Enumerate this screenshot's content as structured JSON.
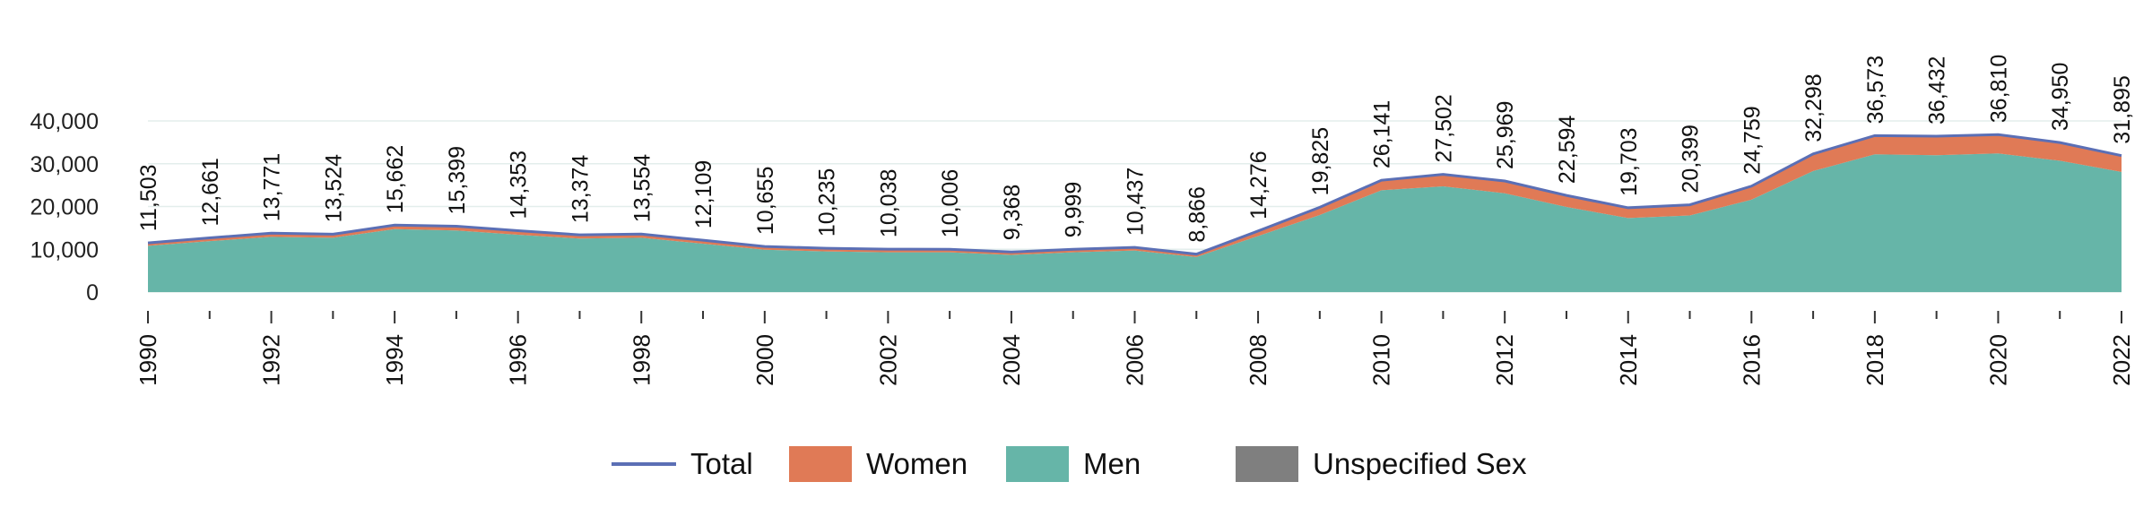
{
  "chart_data": {
    "type": "area",
    "stacked": true,
    "title": "",
    "xlabel": "",
    "ylabel": "",
    "x": [
      1990,
      1991,
      1992,
      1993,
      1994,
      1995,
      1996,
      1997,
      1998,
      1999,
      2000,
      2001,
      2002,
      2003,
      2004,
      2005,
      2006,
      2007,
      2008,
      2009,
      2010,
      2011,
      2012,
      2013,
      2014,
      2015,
      2016,
      2017,
      2018,
      2019,
      2020,
      2021,
      2022
    ],
    "x_tick_labels": [
      "1990",
      "1992",
      "1994",
      "1996",
      "1998",
      "2000",
      "2002",
      "2004",
      "2006",
      "2008",
      "2010",
      "2012",
      "2014",
      "2016",
      "2018",
      "2020",
      "2022"
    ],
    "y_ticks": [
      0,
      10000,
      20000,
      30000,
      40000
    ],
    "y_tick_labels": [
      "0",
      "10,000",
      "20,000",
      "30,000",
      "40,000"
    ],
    "ylim": [
      0,
      40000
    ],
    "grid": true,
    "legend_position": "bottom",
    "series": [
      {
        "name": "Men",
        "color": "#66b5a8",
        "values": [
          10800,
          11900,
          12900,
          12700,
          14700,
          14400,
          13400,
          12500,
          12700,
          11300,
          9900,
          9500,
          9300,
          9300,
          8700,
          9300,
          9700,
          8200,
          13100,
          18000,
          23800,
          24700,
          23100,
          19900,
          17300,
          17900,
          21600,
          28300,
          32200,
          32000,
          32400,
          30700,
          28100
        ]
      },
      {
        "name": "Women",
        "color": "#e07a56",
        "values": [
          703,
          761,
          871,
          824,
          962,
          999,
          953,
          874,
          854,
          809,
          755,
          735,
          738,
          706,
          668,
          699,
          737,
          666,
          1176,
          1825,
          2341,
          2802,
          2869,
          2694,
          2403,
          2499,
          3159,
          3998,
          4373,
          4432,
          4410,
          4250,
          3795
        ]
      },
      {
        "name": "Unspecified Sex",
        "color": "#7f7f7f",
        "values": [
          0,
          0,
          0,
          0,
          0,
          0,
          0,
          0,
          0,
          0,
          0,
          0,
          0,
          0,
          0,
          0,
          0,
          0,
          0,
          0,
          0,
          0,
          0,
          0,
          0,
          0,
          0,
          0,
          0,
          0,
          0,
          0,
          0
        ]
      }
    ],
    "total": {
      "name": "Total",
      "color": "#5b6fb5",
      "values": [
        11503,
        12661,
        13771,
        13524,
        15662,
        15399,
        14353,
        13374,
        13554,
        12109,
        10655,
        10235,
        10038,
        10006,
        9368,
        9999,
        10437,
        8866,
        14276,
        19825,
        26141,
        27502,
        25969,
        22594,
        19703,
        20399,
        24759,
        32298,
        36573,
        36432,
        36810,
        34950,
        31895
      ],
      "labels": [
        "11,503",
        "12,661",
        "13,771",
        "13,524",
        "15,662",
        "15,399",
        "14,353",
        "13,374",
        "13,554",
        "12,109",
        "10,655",
        "10,235",
        "10,038",
        "10,006",
        "9,368",
        "9,999",
        "10,437",
        "8,866",
        "14,276",
        "19,825",
        "26,141",
        "27,502",
        "25,969",
        "22,594",
        "19,703",
        "20,399",
        "24,759",
        "32,298",
        "36,573",
        "36,432",
        "36,810",
        "34,950",
        "31,895"
      ]
    }
  },
  "legend": [
    {
      "label": "Total",
      "kind": "line",
      "color": "#5b6fb5"
    },
    {
      "label": "Women",
      "kind": "area",
      "color": "#e07a56"
    },
    {
      "label": "Men",
      "kind": "area",
      "color": "#66b5a8"
    },
    {
      "label": "Unspecified Sex",
      "kind": "area",
      "color": "#7f7f7f"
    }
  ]
}
